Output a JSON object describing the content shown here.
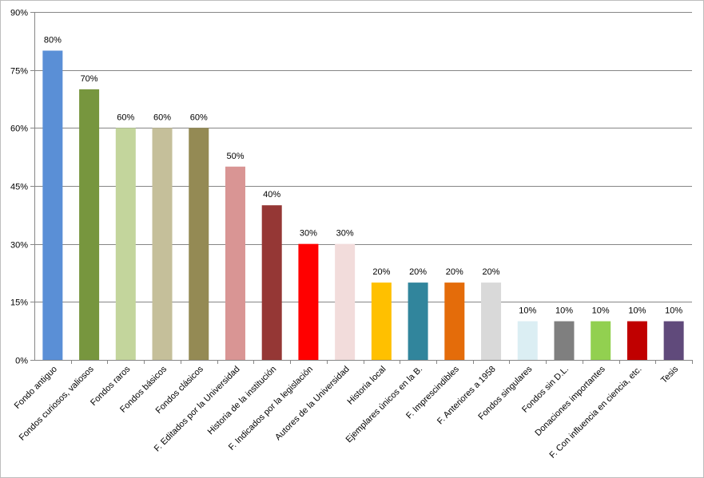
{
  "chart_data": {
    "type": "bar",
    "title": "",
    "xlabel": "",
    "ylabel": "",
    "ylim": [
      0,
      90
    ],
    "yticks": [
      "0%",
      "15%",
      "30%",
      "45%",
      "60%",
      "75%",
      "90%"
    ],
    "ytick_values": [
      0,
      15,
      30,
      45,
      60,
      75,
      90
    ],
    "grid": true,
    "legend": "none",
    "categories": [
      "Fondo antiguo",
      "Fondos curiosos, valiosos",
      "Fondos raros",
      "Fondos básicos",
      "Fondos clásicos",
      "F. Editados por la Universidad",
      "Historia de la institución",
      "F. Indicados por la legislación",
      "Autores de la Universidad",
      "Historia local",
      "Ejemplares únicos en la B.",
      "F. Imprescindibles",
      "F. Anteriores a 1958",
      "Fondos singulares",
      "Fondos sin D.L.",
      "Donaciones importantes",
      "F. Con influencia en ciencia, etc.",
      "Tesis"
    ],
    "values": [
      80,
      70,
      60,
      60,
      60,
      50,
      40,
      30,
      30,
      20,
      20,
      20,
      20,
      10,
      10,
      10,
      10,
      10
    ],
    "data_labels": [
      "80%",
      "70%",
      "60%",
      "60%",
      "60%",
      "50%",
      "40%",
      "30%",
      "30%",
      "20%",
      "20%",
      "20%",
      "20%",
      "10%",
      "10%",
      "10%",
      "10%",
      "10%"
    ],
    "colors": [
      "#5a8fd6",
      "#77963e",
      "#c3d59c",
      "#c5bf9a",
      "#948a54",
      "#d99594",
      "#953735",
      "#ff0000",
      "#f2dcdb",
      "#ffc000",
      "#31859c",
      "#e46c0a",
      "#d9d9d9",
      "#dbeef3",
      "#7f7f7f",
      "#92d050",
      "#c00000",
      "#604a7b"
    ]
  }
}
